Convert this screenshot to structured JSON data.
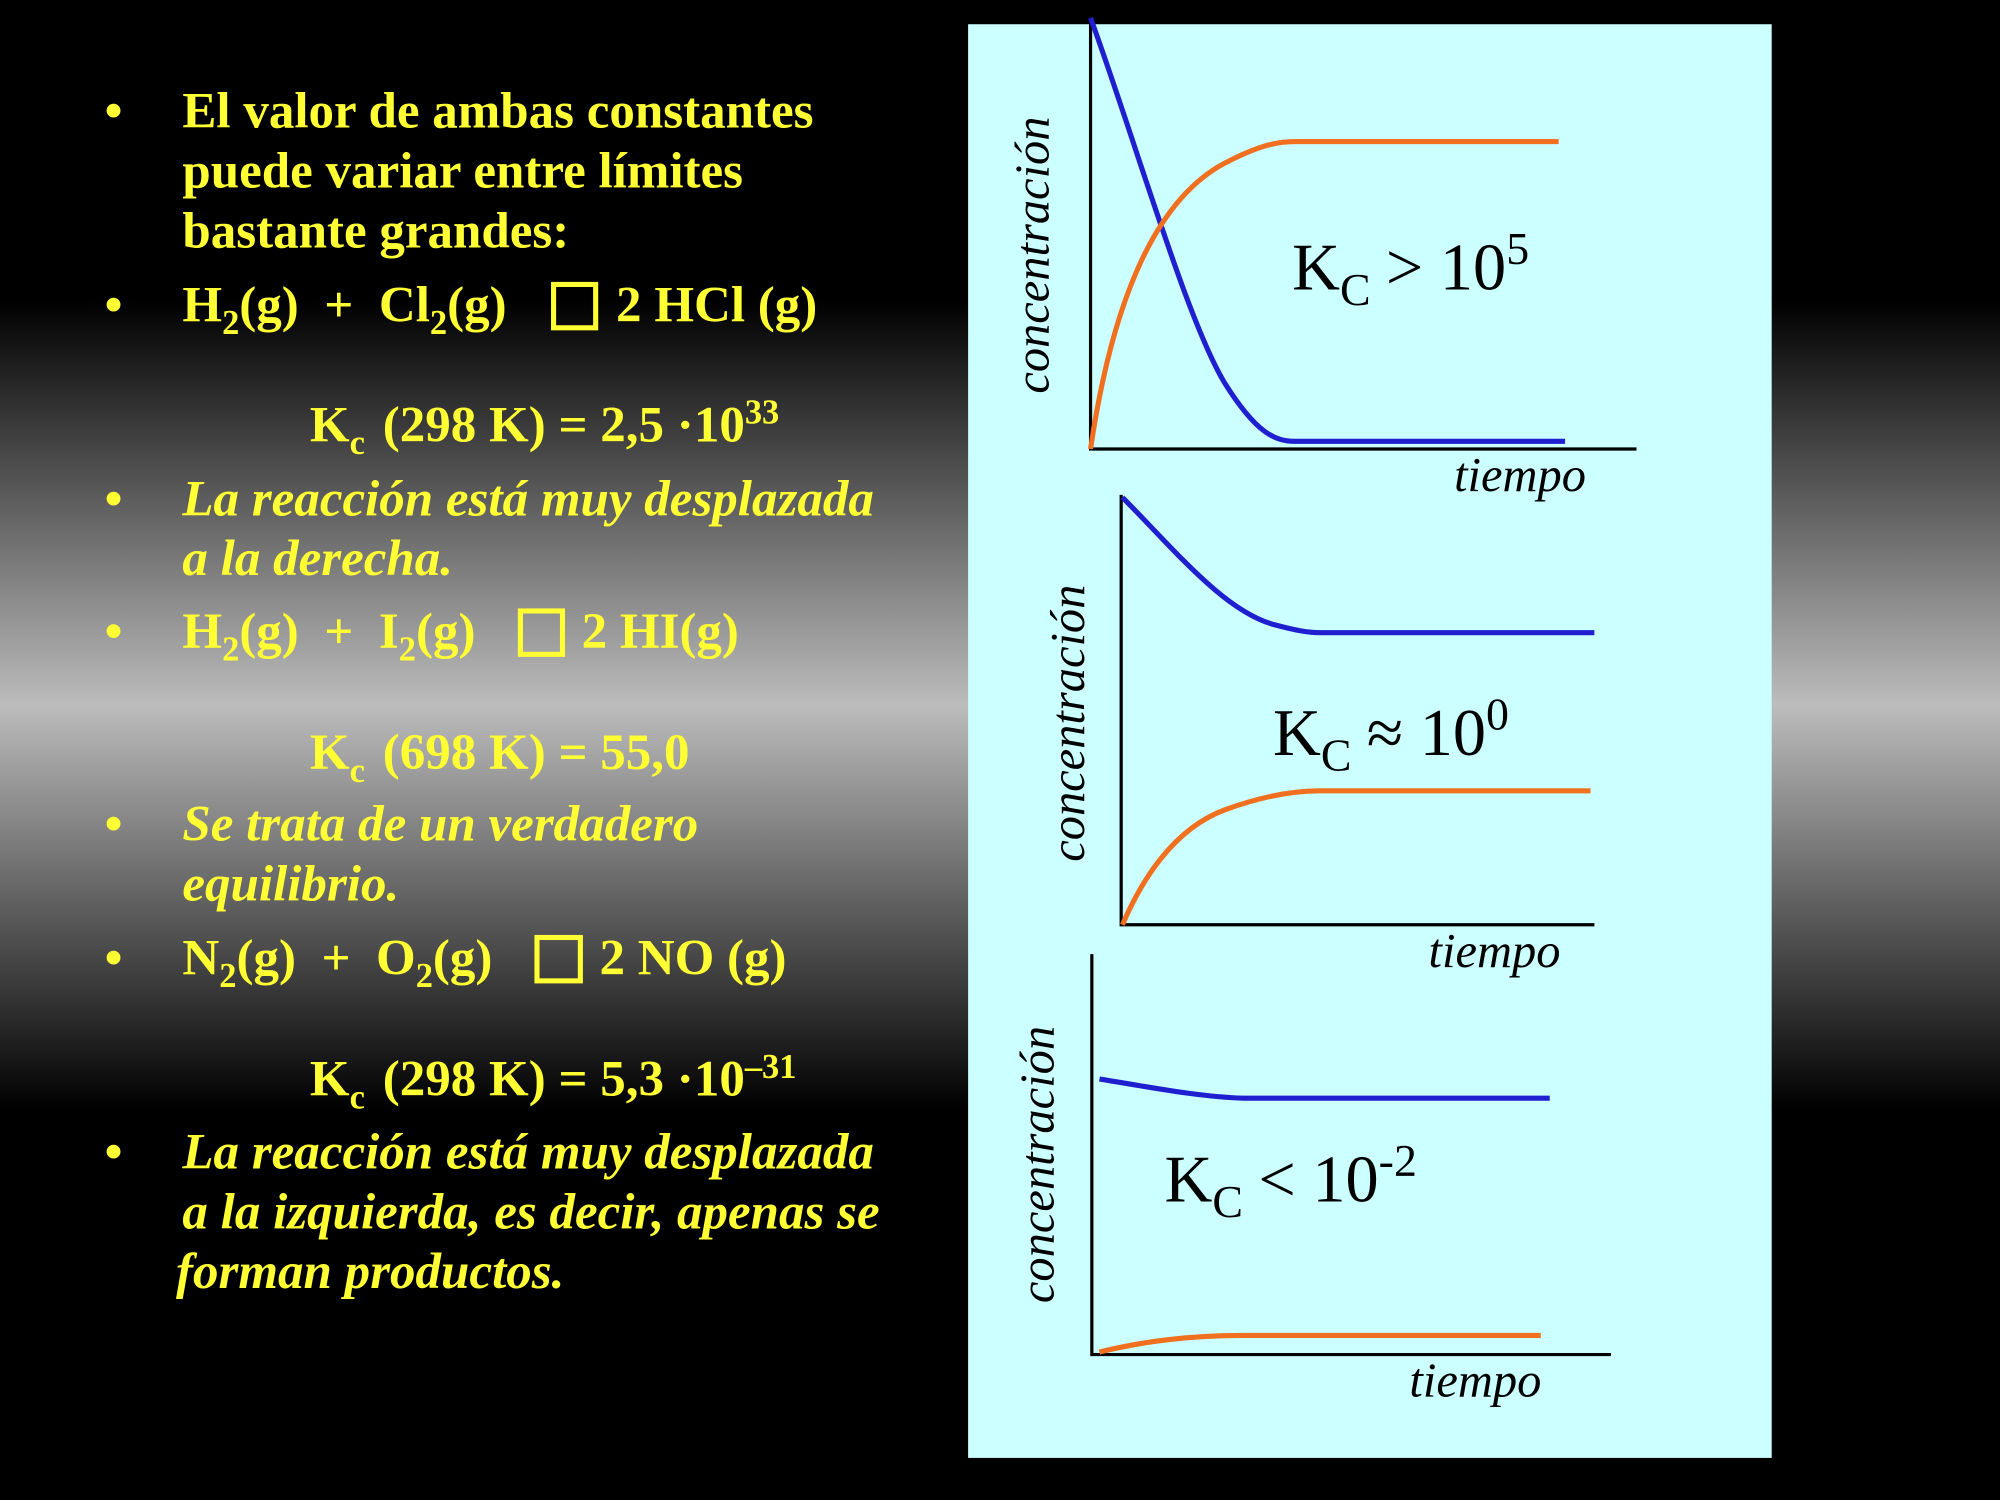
{
  "bullet": "•",
  "items": [
    {
      "lines": [
        "El valor de ambas constantes",
        "puede variar entre límites",
        "bastante grandes:"
      ]
    },
    {
      "parts": [
        "H",
        "2",
        "(g)  +  Cl",
        "2",
        "(g)",
        "2 HCl (g)"
      ]
    },
    {
      "parts": [
        "K",
        "c",
        "(298 K) = 2,5 ·10",
        "33"
      ]
    },
    {
      "lines": [
        "La reacción está muy desplazada",
        "a la derecha."
      ]
    },
    {
      "parts": [
        "H",
        "2",
        "(g)  +  I",
        "2",
        "(g)",
        "2 HI(g)"
      ]
    },
    {
      "parts": [
        "K",
        "c",
        "(698 K) = 55,0"
      ]
    },
    {
      "lines": [
        "Se trata de un verdadero",
        "equilibrio."
      ]
    },
    {
      "parts": [
        "N",
        "2",
        "(g)  +  O",
        "2",
        "(g)",
        "2 NO (g)"
      ]
    },
    {
      "parts": [
        "K",
        "c",
        "(298 K) = 5,3 ·10",
        "–31"
      ]
    },
    {
      "lines": [
        "La reacción está muy desplazada",
        "a la izquierda, es decir, apenas se",
        "forman productos."
      ]
    }
  ],
  "panels": [
    {
      "ylabel": "concentración",
      "xlabel": "tiempo",
      "k": [
        "K",
        "C",
        "> 10",
        "5"
      ]
    },
    {
      "ylabel": "concentración",
      "xlabel": "tiempo",
      "k": [
        "K",
        "C",
        "≈ 10",
        "0"
      ]
    },
    {
      "ylabel": "concentración",
      "xlabel": "tiempo",
      "k": [
        "K",
        "C",
        "< 10",
        "-2"
      ]
    }
  ]
}
